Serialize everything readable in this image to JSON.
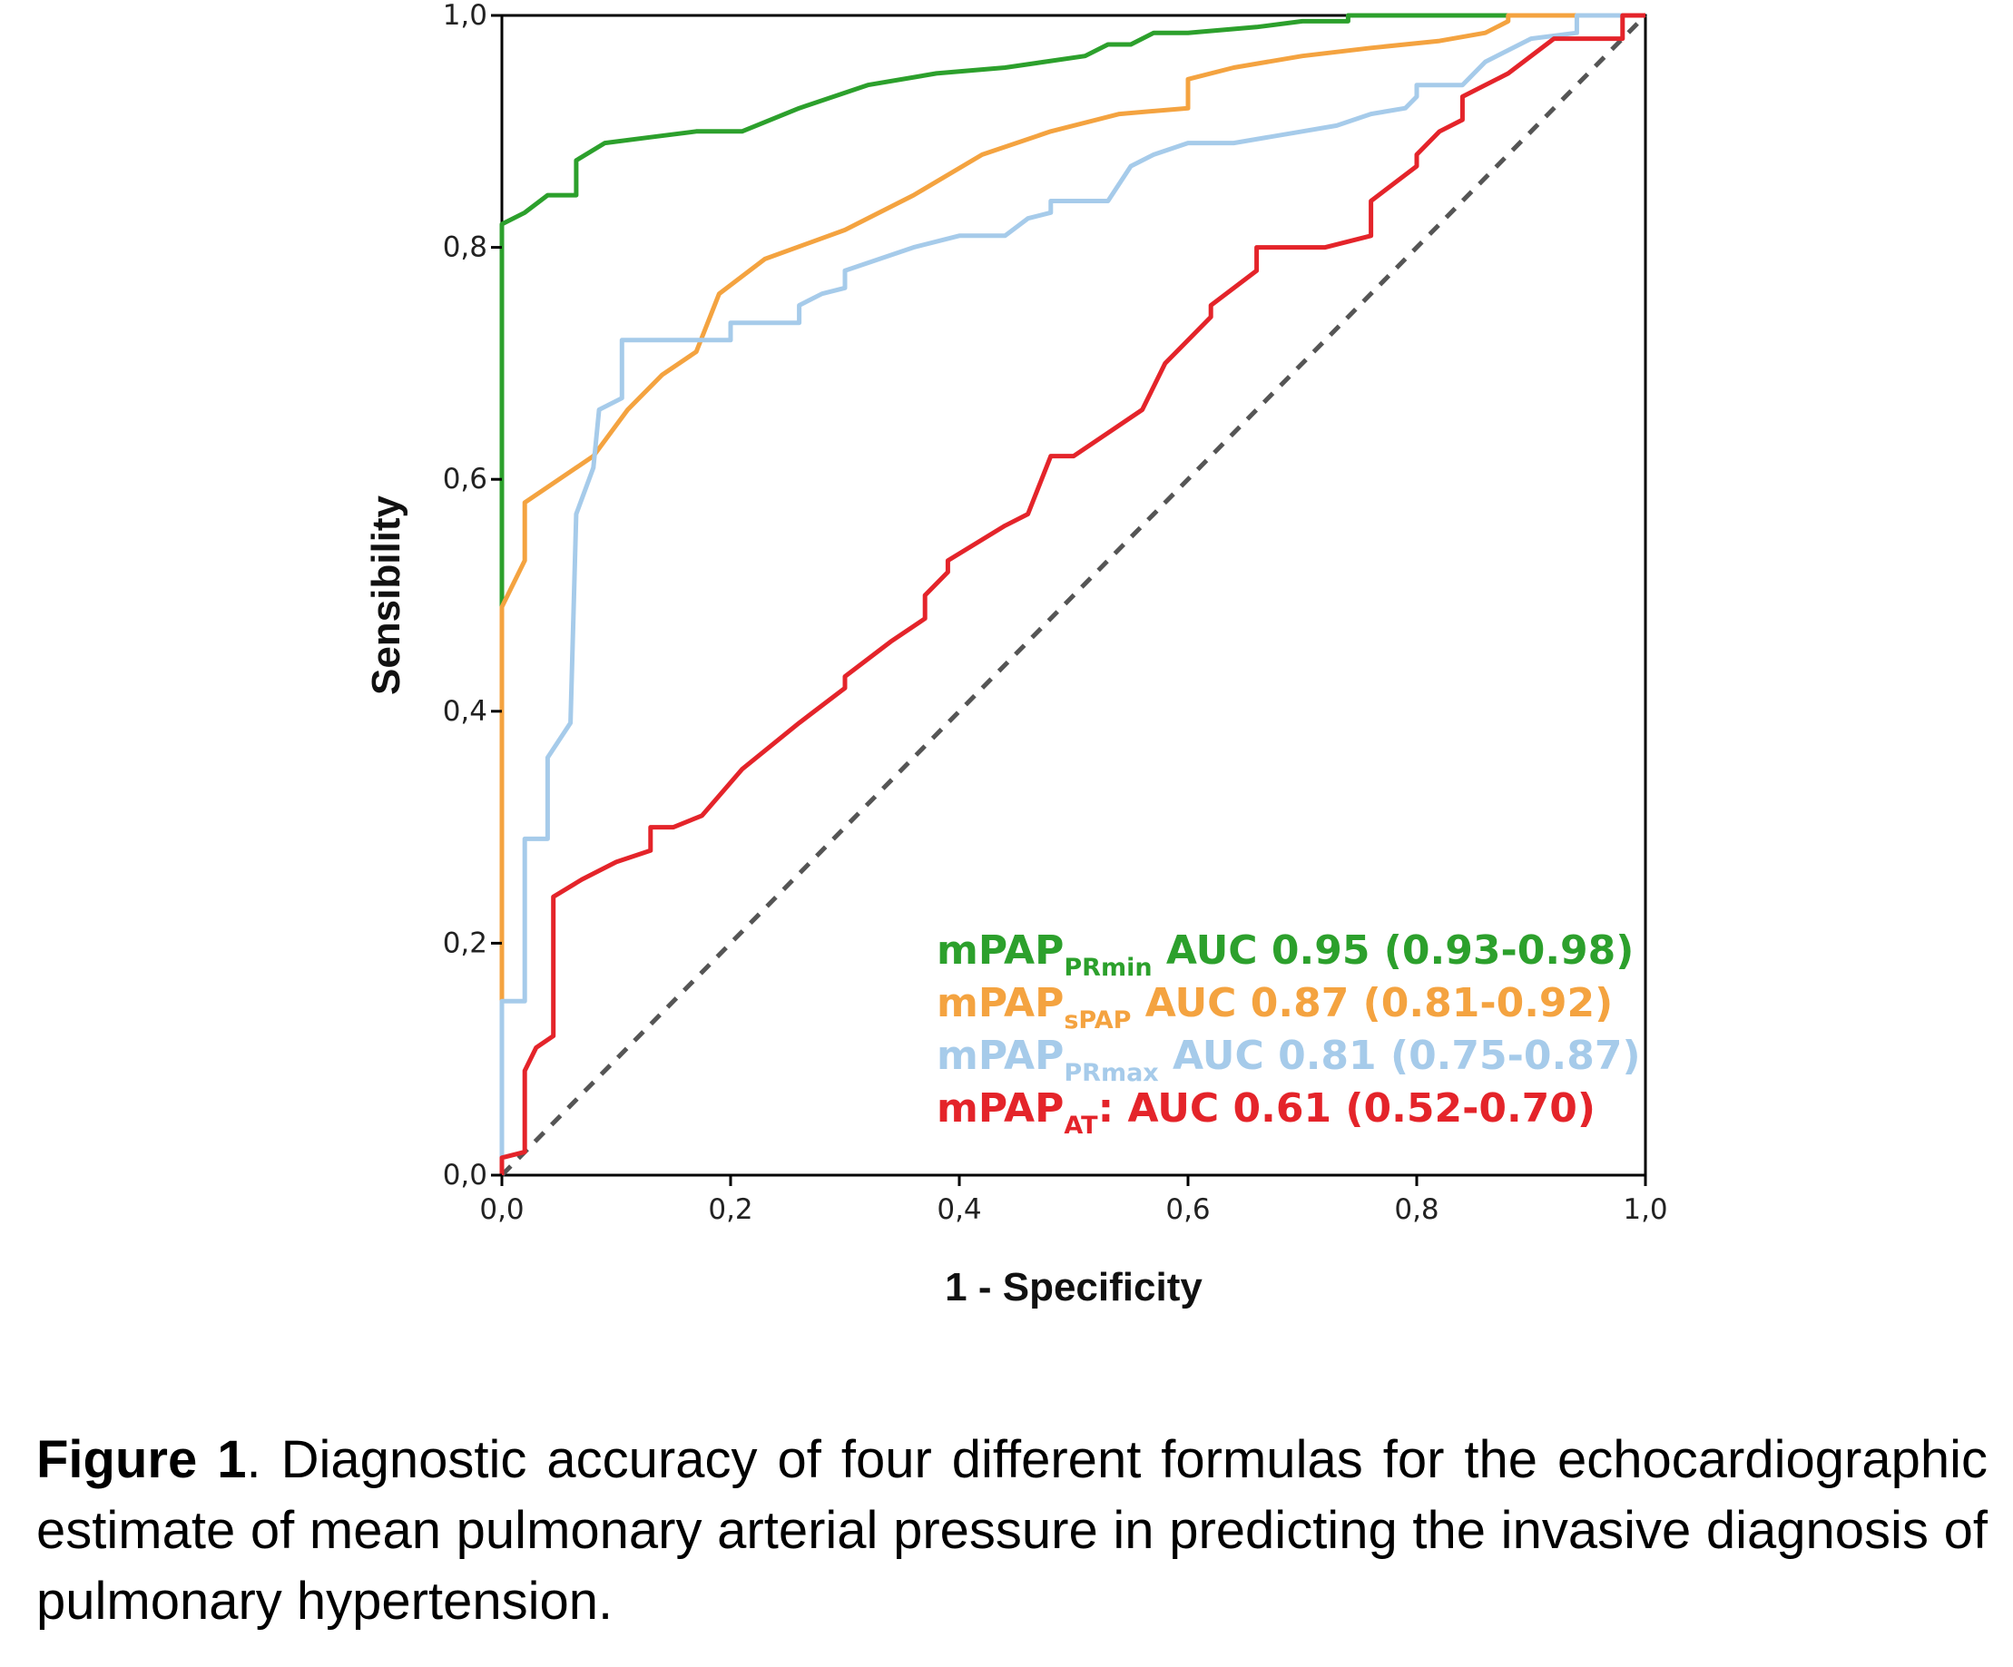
{
  "chart_data": {
    "type": "line",
    "xlabel": "1 - Specificity",
    "ylabel": "Sensibility",
    "xlim": [
      0,
      1
    ],
    "ylim": [
      0,
      1
    ],
    "x_ticks": [
      "0,0",
      "0,2",
      "0,4",
      "0,6",
      "0,8",
      "1,0"
    ],
    "y_ticks": [
      "0,0",
      "0,2",
      "0,4",
      "0,6",
      "0,8",
      "1,0"
    ],
    "grid": false,
    "legend_position": "bottom-right",
    "reference_line": {
      "style": "dashed",
      "color": "#555555",
      "points": [
        [
          0,
          0
        ],
        [
          1,
          1
        ]
      ]
    },
    "series": [
      {
        "legend_main": "mPAP",
        "legend_sub": "PRmin",
        "legend_rest": " AUC 0.95 (0.93-0.98)",
        "color": "#2ca02c",
        "points": [
          [
            0,
            0
          ],
          [
            0,
            0.82
          ],
          [
            0.02,
            0.83
          ],
          [
            0.04,
            0.845
          ],
          [
            0.065,
            0.845
          ],
          [
            0.065,
            0.875
          ],
          [
            0.09,
            0.89
          ],
          [
            0.13,
            0.895
          ],
          [
            0.17,
            0.9
          ],
          [
            0.21,
            0.9
          ],
          [
            0.26,
            0.92
          ],
          [
            0.32,
            0.94
          ],
          [
            0.38,
            0.95
          ],
          [
            0.44,
            0.955
          ],
          [
            0.51,
            0.965
          ],
          [
            0.53,
            0.975
          ],
          [
            0.55,
            0.975
          ],
          [
            0.57,
            0.985
          ],
          [
            0.6,
            0.985
          ],
          [
            0.66,
            0.99
          ],
          [
            0.7,
            0.995
          ],
          [
            0.74,
            0.995
          ],
          [
            0.74,
            1.0
          ],
          [
            1,
            1.0
          ]
        ]
      },
      {
        "legend_main": "mPAP",
        "legend_sub": "sPAP",
        "legend_rest": " AUC 0.87 (0.81-0.92)",
        "color": "#f4a340",
        "points": [
          [
            0,
            0
          ],
          [
            0,
            0.49
          ],
          [
            0.02,
            0.53
          ],
          [
            0.02,
            0.58
          ],
          [
            0.05,
            0.6
          ],
          [
            0.08,
            0.62
          ],
          [
            0.11,
            0.66
          ],
          [
            0.14,
            0.69
          ],
          [
            0.17,
            0.71
          ],
          [
            0.19,
            0.76
          ],
          [
            0.23,
            0.79
          ],
          [
            0.3,
            0.815
          ],
          [
            0.36,
            0.845
          ],
          [
            0.42,
            0.88
          ],
          [
            0.48,
            0.9
          ],
          [
            0.54,
            0.915
          ],
          [
            0.6,
            0.92
          ],
          [
            0.6,
            0.945
          ],
          [
            0.64,
            0.955
          ],
          [
            0.7,
            0.965
          ],
          [
            0.76,
            0.972
          ],
          [
            0.82,
            0.978
          ],
          [
            0.86,
            0.985
          ],
          [
            0.88,
            0.995
          ],
          [
            0.88,
            1.0
          ],
          [
            1,
            1.0
          ]
        ]
      },
      {
        "legend_main": "mPAP",
        "legend_sub": "PRmax",
        "legend_rest": " AUC 0.81 (0.75-0.87)",
        "color": "#a6cbea",
        "points": [
          [
            0,
            0
          ],
          [
            0,
            0.15
          ],
          [
            0.02,
            0.15
          ],
          [
            0.02,
            0.29
          ],
          [
            0.04,
            0.29
          ],
          [
            0.04,
            0.36
          ],
          [
            0.06,
            0.39
          ],
          [
            0.065,
            0.57
          ],
          [
            0.08,
            0.61
          ],
          [
            0.085,
            0.66
          ],
          [
            0.105,
            0.67
          ],
          [
            0.105,
            0.72
          ],
          [
            0.2,
            0.72
          ],
          [
            0.2,
            0.735
          ],
          [
            0.26,
            0.735
          ],
          [
            0.26,
            0.75
          ],
          [
            0.28,
            0.76
          ],
          [
            0.3,
            0.765
          ],
          [
            0.3,
            0.78
          ],
          [
            0.36,
            0.8
          ],
          [
            0.4,
            0.81
          ],
          [
            0.44,
            0.81
          ],
          [
            0.46,
            0.825
          ],
          [
            0.48,
            0.83
          ],
          [
            0.48,
            0.84
          ],
          [
            0.53,
            0.84
          ],
          [
            0.55,
            0.87
          ],
          [
            0.57,
            0.88
          ],
          [
            0.6,
            0.89
          ],
          [
            0.64,
            0.89
          ],
          [
            0.7,
            0.9
          ],
          [
            0.73,
            0.905
          ],
          [
            0.76,
            0.915
          ],
          [
            0.79,
            0.92
          ],
          [
            0.8,
            0.93
          ],
          [
            0.8,
            0.94
          ],
          [
            0.84,
            0.94
          ],
          [
            0.86,
            0.96
          ],
          [
            0.9,
            0.98
          ],
          [
            0.94,
            0.985
          ],
          [
            0.94,
            1.0
          ],
          [
            1,
            1.0
          ]
        ]
      },
      {
        "legend_main": "mPAP",
        "legend_sub": "AT",
        "legend_rest": ": AUC 0.61 (0.52-0.70)",
        "color": "#e4242a",
        "points": [
          [
            0,
            0
          ],
          [
            0,
            0.015
          ],
          [
            0.02,
            0.02
          ],
          [
            0.02,
            0.09
          ],
          [
            0.03,
            0.11
          ],
          [
            0.045,
            0.12
          ],
          [
            0.045,
            0.24
          ],
          [
            0.07,
            0.255
          ],
          [
            0.1,
            0.27
          ],
          [
            0.13,
            0.28
          ],
          [
            0.13,
            0.3
          ],
          [
            0.15,
            0.3
          ],
          [
            0.175,
            0.31
          ],
          [
            0.21,
            0.35
          ],
          [
            0.26,
            0.39
          ],
          [
            0.3,
            0.42
          ],
          [
            0.3,
            0.43
          ],
          [
            0.34,
            0.46
          ],
          [
            0.37,
            0.48
          ],
          [
            0.37,
            0.5
          ],
          [
            0.39,
            0.52
          ],
          [
            0.39,
            0.53
          ],
          [
            0.44,
            0.56
          ],
          [
            0.46,
            0.57
          ],
          [
            0.48,
            0.62
          ],
          [
            0.5,
            0.62
          ],
          [
            0.53,
            0.64
          ],
          [
            0.56,
            0.66
          ],
          [
            0.58,
            0.7
          ],
          [
            0.62,
            0.74
          ],
          [
            0.62,
            0.75
          ],
          [
            0.66,
            0.78
          ],
          [
            0.66,
            0.8
          ],
          [
            0.72,
            0.8
          ],
          [
            0.76,
            0.81
          ],
          [
            0.76,
            0.84
          ],
          [
            0.8,
            0.87
          ],
          [
            0.8,
            0.88
          ],
          [
            0.82,
            0.9
          ],
          [
            0.84,
            0.91
          ],
          [
            0.84,
            0.93
          ],
          [
            0.88,
            0.95
          ],
          [
            0.92,
            0.98
          ],
          [
            0.98,
            0.98
          ],
          [
            0.98,
            1.0
          ],
          [
            1,
            1.0
          ]
        ]
      }
    ]
  },
  "caption": {
    "label": "Figure 1",
    "text": ". Diagnostic accuracy of four different formulas for the echocardiographic estimate of mean pulmonary arterial pressure in predicting the invasive diagnosis of pulmonary hypertension."
  }
}
